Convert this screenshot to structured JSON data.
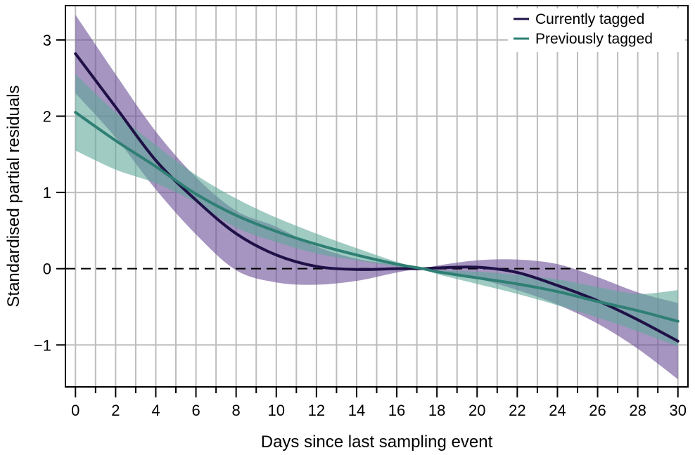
{
  "chart_data": {
    "type": "line",
    "xlabel": "Days since last sampling event",
    "ylabel": "Standardised partial residuals",
    "xlim": [
      -0.5,
      30.5
    ],
    "ylim": [
      -1.55,
      3.45
    ],
    "x_ticks": [
      0,
      2,
      4,
      6,
      8,
      10,
      12,
      14,
      16,
      18,
      20,
      22,
      24,
      26,
      28,
      30
    ],
    "x_tick_labels": [
      "0",
      "2",
      "4",
      "6",
      "8",
      "10",
      "12",
      "14",
      "16",
      "18",
      "20",
      "22",
      "24",
      "26",
      "28",
      "30"
    ],
    "x_minor_ticks": [
      1,
      3,
      5,
      7,
      9,
      11,
      13,
      15,
      17,
      19,
      21,
      23,
      25,
      27,
      29
    ],
    "y_ticks": [
      -1,
      0,
      1,
      2,
      3
    ],
    "y_tick_labels": [
      "−1",
      "0",
      "1",
      "2",
      "3"
    ],
    "grid": true,
    "reference_line": {
      "y": 0,
      "style": "dashed"
    },
    "legend_position": "top-right",
    "x": [
      0,
      2,
      4,
      6,
      8,
      10,
      12,
      14,
      16,
      17.3,
      18,
      20,
      22,
      24,
      26,
      28,
      30
    ],
    "series": [
      {
        "name": "Currently tagged",
        "color": "#1f1147",
        "band_color": "#6a4f96",
        "values": [
          2.82,
          2.12,
          1.42,
          0.9,
          0.46,
          0.18,
          0.03,
          -0.01,
          0.0,
          0.0,
          0.01,
          0.02,
          -0.05,
          -0.22,
          -0.42,
          -0.67,
          -0.95
        ],
        "lower": [
          2.3,
          1.72,
          1.04,
          0.45,
          -0.02,
          -0.18,
          -0.21,
          -0.16,
          -0.05,
          0.0,
          -0.03,
          -0.13,
          -0.28,
          -0.47,
          -0.72,
          -1.05,
          -1.45
        ],
        "upper": [
          3.33,
          2.55,
          1.8,
          1.2,
          0.76,
          0.55,
          0.29,
          0.13,
          0.05,
          0.0,
          0.04,
          0.11,
          0.12,
          0.06,
          -0.11,
          -0.31,
          -0.45
        ]
      },
      {
        "name": "Previously tagged",
        "color": "#2f7f74",
        "band_color": "#5fa899",
        "values": [
          2.05,
          1.68,
          1.34,
          0.98,
          0.7,
          0.49,
          0.32,
          0.18,
          0.06,
          0.0,
          -0.04,
          -0.12,
          -0.2,
          -0.3,
          -0.43,
          -0.55,
          -0.69
        ],
        "lower": [
          1.55,
          1.3,
          1.12,
          0.87,
          0.54,
          0.35,
          0.2,
          0.11,
          0.03,
          0.0,
          -0.07,
          -0.2,
          -0.33,
          -0.48,
          -0.64,
          -0.82,
          -1.02
        ],
        "upper": [
          2.55,
          2.05,
          1.62,
          1.23,
          0.92,
          0.67,
          0.46,
          0.27,
          0.09,
          0.0,
          -0.02,
          -0.04,
          -0.08,
          -0.14,
          -0.24,
          -0.33,
          -0.28
        ]
      }
    ]
  }
}
